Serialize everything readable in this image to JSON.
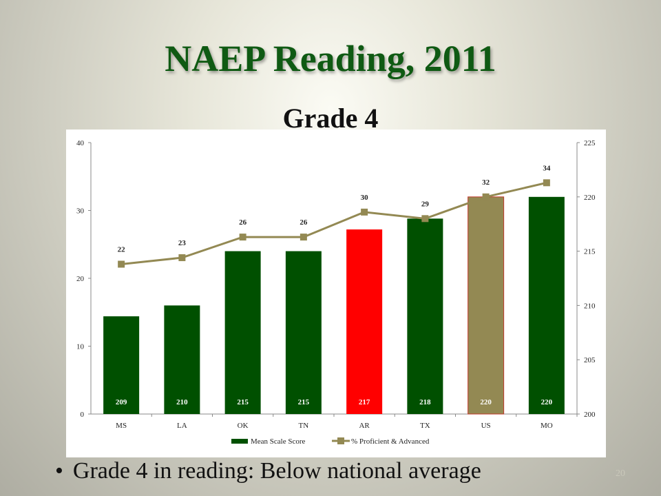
{
  "slide": {
    "title": "NAEP Reading, 2011",
    "subtitle": "Grade 4",
    "bullet": "Grade 4 in reading: Below national average",
    "page_number": "20"
  },
  "chart_data": {
    "type": "bar",
    "categories": [
      "MS",
      "LA",
      "OK",
      "TN",
      "AR",
      "TX",
      "US",
      "MO"
    ],
    "series": [
      {
        "name": "Mean Scale Score",
        "type": "bar",
        "axis": "right",
        "values": [
          209,
          210,
          215,
          215,
          217,
          218,
          220,
          220
        ],
        "bar_colors": [
          "#005000",
          "#005000",
          "#005000",
          "#005000",
          "#ff0000",
          "#005000",
          "#938953",
          "#005000"
        ],
        "data_labels": [
          "209",
          "210",
          "215",
          "215",
          "217",
          "218",
          "220",
          "220"
        ]
      },
      {
        "name": "% Proficient & Advanced",
        "type": "line",
        "axis": "right",
        "values": [
          213.8,
          214.4,
          216.3,
          216.3,
          218.6,
          218.0,
          220.0,
          221.3
        ],
        "color": "#938953",
        "data_labels": [
          "22",
          "23",
          "26",
          "26",
          "30",
          "29",
          "32",
          "34"
        ]
      }
    ],
    "y_left": {
      "ylim": [
        0,
        40
      ],
      "ticks": [
        "0",
        "10",
        "20",
        "30",
        "40"
      ]
    },
    "y_right": {
      "ylim": [
        200,
        225
      ],
      "ticks": [
        "200",
        "205",
        "210",
        "215",
        "220",
        "225"
      ]
    },
    "grid": false,
    "legend_position": "bottom",
    "colors": {
      "bar": "#005000",
      "highlight_state": "#ff0000",
      "national": "#938953",
      "line": "#938953"
    }
  }
}
